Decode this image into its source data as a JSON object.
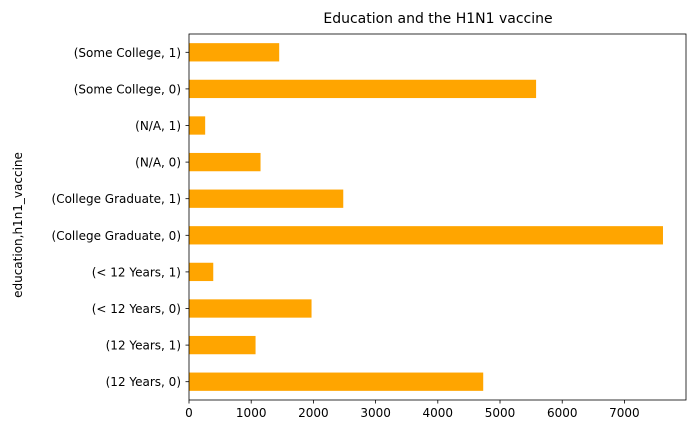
{
  "chart_data": {
    "type": "bar",
    "orientation": "horizontal",
    "title": "Education and the H1N1 vaccine",
    "xlabel": "",
    "ylabel": "education,h1n1_vaccine",
    "categories": [
      "(12 Years, 0)",
      "(12 Years, 1)",
      "(< 12 Years, 0)",
      "(< 12 Years, 1)",
      "(College Graduate, 0)",
      "(College Graduate, 1)",
      "(N/A, 0)",
      "(N/A, 1)",
      "(Some College, 0)",
      "(Some College, 1)"
    ],
    "values": [
      4730,
      1070,
      1970,
      390,
      7620,
      2480,
      1150,
      260,
      5580,
      1450
    ],
    "xlim": [
      0,
      7990
    ],
    "xticks": [
      0,
      1000,
      2000,
      3000,
      4000,
      5000,
      6000,
      7000
    ],
    "xtick_labels": [
      "0",
      "1000",
      "2000",
      "3000",
      "4000",
      "5000",
      "6000",
      "7000"
    ],
    "grid": false,
    "bar_color": "#ffa500"
  }
}
